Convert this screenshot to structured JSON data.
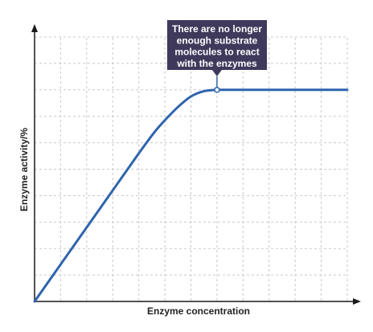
{
  "chart_data": {
    "type": "line",
    "title": "",
    "xlabel": "Enzyme concentration",
    "ylabel": "Enzyme activity/%",
    "xlim": [
      0,
      12
    ],
    "ylim": [
      0,
      10
    ],
    "grid": true,
    "series": [
      {
        "values": [
          [
            0,
            0
          ],
          [
            1,
            1.4
          ],
          [
            2,
            2.8
          ],
          [
            3,
            4.2
          ],
          [
            4,
            5.6
          ],
          [
            4.6,
            6.4
          ],
          [
            5,
            6.85
          ],
          [
            5.5,
            7.35
          ],
          [
            6,
            7.75
          ],
          [
            6.5,
            7.95
          ],
          [
            7,
            8.0
          ],
          [
            8,
            8.0
          ],
          [
            9,
            8.0
          ],
          [
            10,
            8.0
          ],
          [
            11,
            8.0
          ],
          [
            12,
            8.0
          ]
        ]
      }
    ],
    "annotations": [
      {
        "lines": [
          "There are no longer",
          "enough substrate",
          "molecules to react",
          "with the enzymes"
        ],
        "point": [
          7,
          8
        ]
      }
    ],
    "colors": {
      "line": "#2f64ad",
      "grid": "#c9c9c9",
      "axis": "#1a1a1a",
      "callout_bg": "#3f3a5c"
    }
  }
}
